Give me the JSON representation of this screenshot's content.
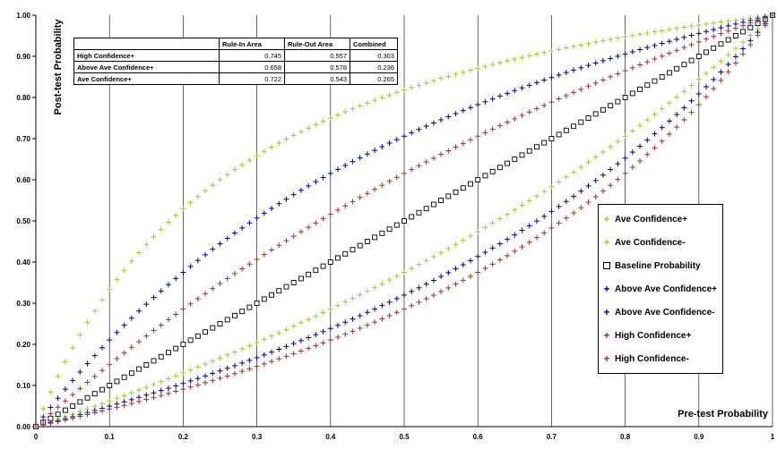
{
  "chart_data": {
    "type": "scatter",
    "xlabel": "Pre-test Probability",
    "ylabel": "Post-test Probability",
    "xlim": [
      0,
      1
    ],
    "ylim": [
      0,
      1
    ],
    "x_ticks": [
      "0",
      "0.1",
      "0.2",
      "0.3",
      "0.4",
      "0.5",
      "0.6",
      "0.7",
      "0.8",
      "0.9",
      "1"
    ],
    "y_ticks": [
      "0.00",
      "0.10",
      "0.20",
      "0.30",
      "0.40",
      "0.50",
      "0.60",
      "0.70",
      "0.80",
      "0.90",
      "1.00"
    ],
    "grid": "vertical",
    "legend_position": "right",
    "x_step": 0.01,
    "series": [
      {
        "name": "Ave Confidence+",
        "color": "#99cc33",
        "marker": "plus",
        "likelihood_ratio": 4.5
      },
      {
        "name": "Ave Confidence-",
        "color": "#99cc33",
        "marker": "plus",
        "likelihood_ratio": 0.6
      },
      {
        "name": "Baseline Probability",
        "color": "#000000",
        "marker": "square",
        "likelihood_ratio": 1.0
      },
      {
        "name": "Above Ave Confidence+",
        "color": "#000099",
        "marker": "plus",
        "likelihood_ratio": 2.4
      },
      {
        "name": "Above Ave Confidence-",
        "color": "#000099",
        "marker": "plus",
        "likelihood_ratio": 0.47
      },
      {
        "name": "High Confidence+",
        "color": "#993333",
        "marker": "plus",
        "likelihood_ratio": 1.6
      },
      {
        "name": "High Confidence-",
        "color": "#993333",
        "marker": "plus",
        "likelihood_ratio": 0.4
      }
    ],
    "table": {
      "headers": [
        "",
        "Rule-In Area",
        "Rule-Out Area",
        "Combined"
      ],
      "rows": [
        [
          "High Confidence+",
          "0.745",
          "0.557",
          "0.303"
        ],
        [
          "Above Ave Confidence+",
          "0.658",
          "0.578",
          "0.236"
        ],
        [
          "Ave Confidence+",
          "0.722",
          "0.543",
          "0.265"
        ]
      ]
    }
  }
}
